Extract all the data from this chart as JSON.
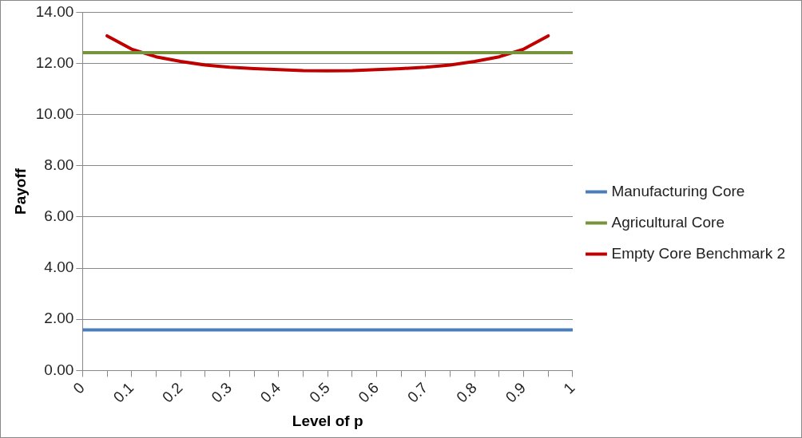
{
  "chart_data": {
    "type": "line",
    "xlabel": "Level of p",
    "ylabel": "Payoff",
    "xlim": [
      0,
      1
    ],
    "xticks": [
      0,
      {
        "value": 0.05,
        "label": null
      },
      0.1,
      {
        "value": 0.15,
        "label": null
      },
      0.2,
      {
        "value": 0.25,
        "label": null
      },
      0.3,
      {
        "value": 0.35,
        "label": null
      },
      0.4,
      {
        "value": 0.45,
        "label": null
      },
      0.5,
      {
        "value": 0.55,
        "label": null
      },
      0.6,
      {
        "value": 0.65,
        "label": null
      },
      0.7,
      {
        "value": 0.75,
        "label": null
      },
      0.8,
      {
        "value": 0.85,
        "label": null
      },
      0.9,
      {
        "value": 0.95,
        "label": null
      },
      1
    ],
    "ylim": [
      0,
      14
    ],
    "yticks": [
      {
        "value": 0,
        "label": "0.00"
      },
      {
        "value": 2,
        "label": "2.00"
      },
      {
        "value": 4,
        "label": "4.00"
      },
      {
        "value": 6,
        "label": "6.00"
      },
      {
        "value": 8,
        "label": "8.00"
      },
      {
        "value": 10,
        "label": "10.00"
      },
      {
        "value": 12,
        "label": "12.00"
      },
      {
        "value": 14,
        "label": "14.00"
      }
    ],
    "grid": "y",
    "legend": "right",
    "marker": "none",
    "line_style": "solid",
    "series": [
      {
        "name": "Manufacturing Core",
        "color": "#4a7ebb",
        "x": [
          0,
          1
        ],
        "values": [
          1.59,
          1.59
        ]
      },
      {
        "name": "Agricultural Core",
        "color": "#77933c",
        "x": [
          0,
          1
        ],
        "values": [
          12.42,
          12.42
        ]
      },
      {
        "name": "Empty Core Benchmark 2",
        "color": "#c00000",
        "x": [
          0.05,
          0.1,
          0.15,
          0.2,
          0.25,
          0.3,
          0.35,
          0.4,
          0.45,
          0.5,
          0.55,
          0.6,
          0.65,
          0.7,
          0.75,
          0.8,
          0.85,
          0.9,
          0.95
        ],
        "values": [
          13.08,
          12.56,
          12.26,
          12.08,
          11.94,
          11.85,
          11.8,
          11.76,
          11.72,
          11.71,
          11.72,
          11.76,
          11.8,
          11.85,
          11.94,
          12.08,
          12.26,
          12.56,
          13.08
        ]
      }
    ]
  }
}
